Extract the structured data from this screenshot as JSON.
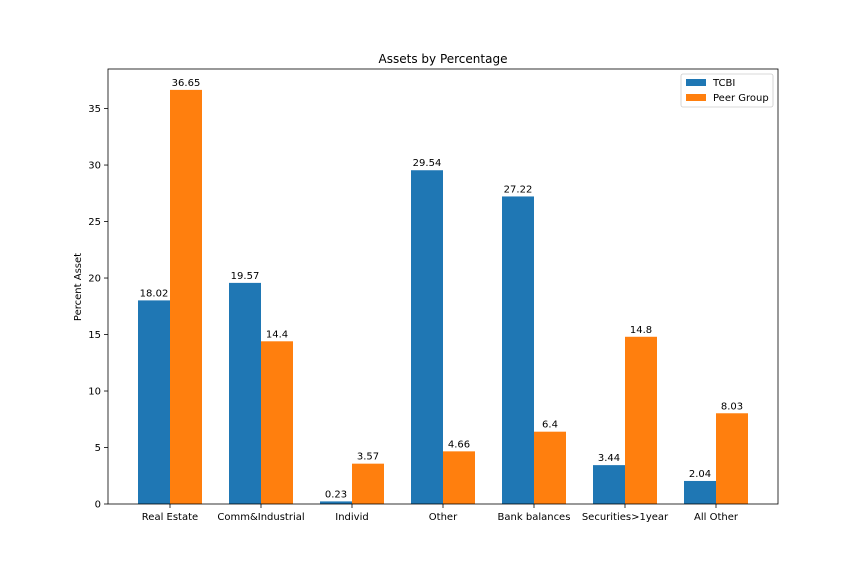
{
  "chart_data": {
    "type": "bar",
    "title": "Assets by Percentage",
    "xlabel": "",
    "ylabel": "Percent Asset",
    "categories": [
      "Real Estate",
      "Comm&Industrial",
      "Individ",
      "Other",
      "Bank balances",
      "Securities>1year",
      "All Other"
    ],
    "series": [
      {
        "name": "TCBI",
        "color": "#1f77b4",
        "values": [
          18.02,
          19.57,
          0.23,
          29.54,
          27.22,
          3.44,
          2.04
        ],
        "labels": [
          "18.02",
          "19.57",
          "0.23",
          "29.54",
          "27.22",
          "3.44",
          "2.04"
        ]
      },
      {
        "name": "Peer Group",
        "color": "#ff7f0e",
        "values": [
          36.65,
          14.4,
          3.57,
          4.66,
          6.4,
          14.8,
          8.03
        ],
        "labels": [
          "36.65",
          "14.4",
          "3.57",
          "4.66",
          "6.4",
          "14.8",
          "8.03"
        ]
      }
    ],
    "ylim": [
      0,
      38.5
    ],
    "yticks": [
      0,
      5,
      10,
      15,
      20,
      25,
      30,
      35
    ],
    "ytick_labels": [
      "0",
      "5",
      "10",
      "15",
      "20",
      "25",
      "30",
      "35"
    ],
    "grid": false,
    "legend_position": "top-right"
  }
}
